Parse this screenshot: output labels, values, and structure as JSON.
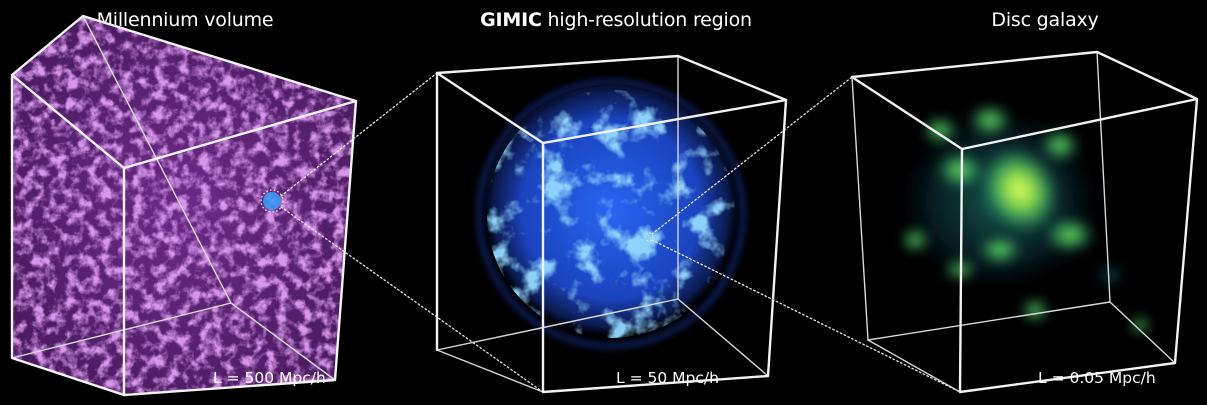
{
  "panels": [
    {
      "title": "Millennium volume",
      "scale": "L = 500 Mpc/h",
      "color": "#b04fd6"
    },
    {
      "title_bold": "GIMIC",
      "title_rest": " high-resolution region",
      "scale": "L = 50 Mpc/h",
      "color": "#2f6dff"
    },
    {
      "title": "Disc galaxy",
      "scale": "L = 0.05 Mpc/h",
      "color": "#7cff6a"
    }
  ],
  "background_color": "#000000",
  "edge_color": "#f2f2f2"
}
